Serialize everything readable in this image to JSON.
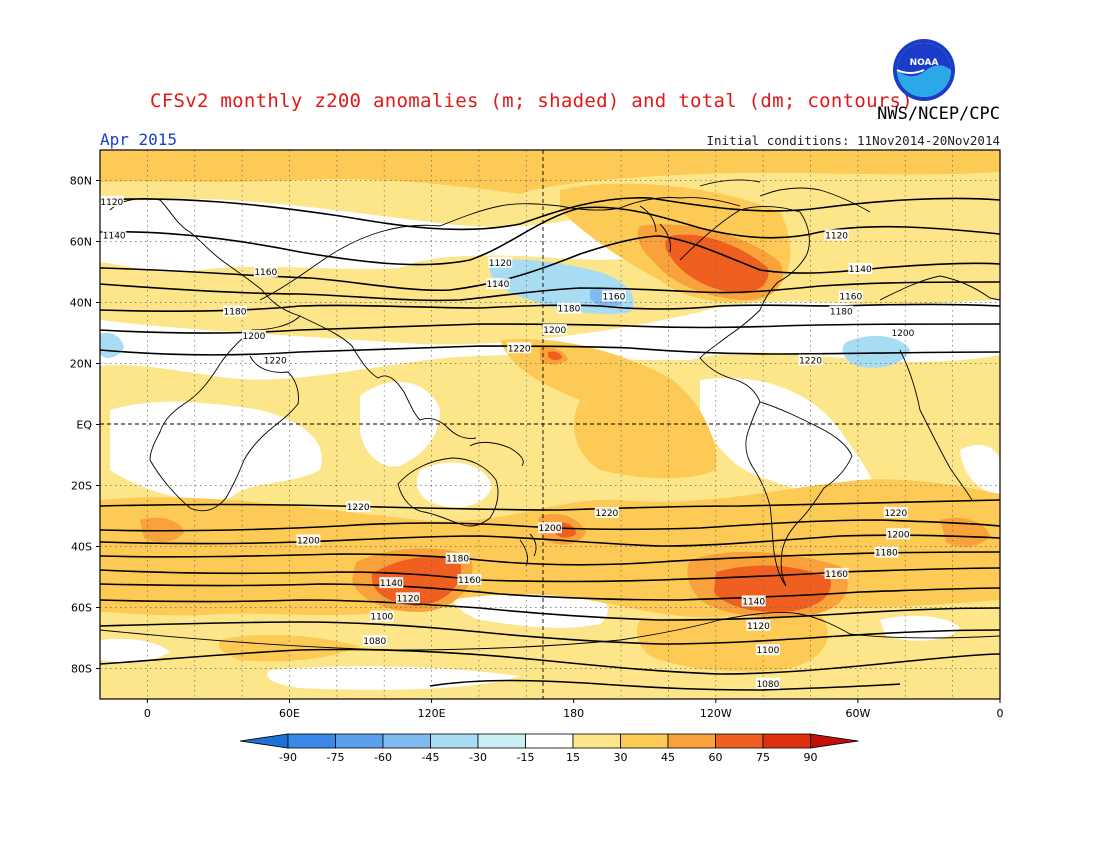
{
  "title": "CFSv2 monthly z200 anomalies (m; shaded) and total (dm; contours)",
  "agency": "NWS/NCEP/CPC",
  "logo_text": "NOAA",
  "month": "Apr 2015",
  "initial_conditions": "Initial conditions: 11Nov2014-20Nov2014",
  "lat_labels": [
    {
      "text": "80N",
      "lat": 80
    },
    {
      "text": "60N",
      "lat": 60
    },
    {
      "text": "40N",
      "lat": 40
    },
    {
      "text": "20N",
      "lat": 20
    },
    {
      "text": "EQ",
      "lat": 0
    },
    {
      "text": "20S",
      "lat": -20
    },
    {
      "text": "40S",
      "lat": -40
    },
    {
      "text": "60S",
      "lat": -60
    },
    {
      "text": "80S",
      "lat": -80
    }
  ],
  "lon_labels": [
    {
      "text": "0",
      "lon": 0
    },
    {
      "text": "60E",
      "lon": 60
    },
    {
      "text": "120E",
      "lon": 120
    },
    {
      "text": "180",
      "lon": 180
    },
    {
      "text": "120W",
      "lon": 240
    },
    {
      "text": "60W",
      "lon": 300
    },
    {
      "text": "0",
      "lon": 360
    }
  ],
  "colorbar": {
    "levels": [
      "-90",
      "-75",
      "-60",
      "-45",
      "-30",
      "-15",
      "15",
      "30",
      "45",
      "60",
      "75",
      "90"
    ],
    "colors": [
      "#1f6fd8",
      "#3a88e8",
      "#5aa0ee",
      "#80baf2",
      "#a8dcf2",
      "#c8f0f4",
      "#ffffff",
      "#fde68a",
      "#fcca55",
      "#f9a23c",
      "#ef6020",
      "#e03010",
      "#c01008"
    ]
  },
  "contour_labels": [
    {
      "text": "1120",
      "lon": -15,
      "lat": 73
    },
    {
      "text": "1140",
      "lon": -14,
      "lat": 62
    },
    {
      "text": "1160",
      "lon": 50,
      "lat": 50
    },
    {
      "text": "1180",
      "lon": 37,
      "lat": 37
    },
    {
      "text": "1200",
      "lon": 45,
      "lat": 29
    },
    {
      "text": "1220",
      "lon": 54,
      "lat": 21
    },
    {
      "text": "1120",
      "lon": 149,
      "lat": 53
    },
    {
      "text": "1140",
      "lon": 148,
      "lat": 46
    },
    {
      "text": "1160",
      "lon": 197,
      "lat": 42
    },
    {
      "text": "1180",
      "lon": 178,
      "lat": 38
    },
    {
      "text": "1200",
      "lon": 172,
      "lat": 31
    },
    {
      "text": "1220",
      "lon": 157,
      "lat": 25
    },
    {
      "text": "1120",
      "lon": 291,
      "lat": 62
    },
    {
      "text": "1140",
      "lon": 301,
      "lat": 51
    },
    {
      "text": "1160",
      "lon": 297,
      "lat": 42
    },
    {
      "text": "1180",
      "lon": 293,
      "lat": 37
    },
    {
      "text": "1200",
      "lon": 319,
      "lat": 30
    },
    {
      "text": "1220",
      "lon": 280,
      "lat": 21
    },
    {
      "text": "1220",
      "lon": 89,
      "lat": -27
    },
    {
      "text": "1200",
      "lon": 68,
      "lat": -38
    },
    {
      "text": "1180",
      "lon": 131,
      "lat": -44
    },
    {
      "text": "1160",
      "lon": 136,
      "lat": -51
    },
    {
      "text": "1140",
      "lon": 103,
      "lat": -52
    },
    {
      "text": "1120",
      "lon": 110,
      "lat": -57
    },
    {
      "text": "1100",
      "lon": 99,
      "lat": -63
    },
    {
      "text": "1080",
      "lon": 96,
      "lat": -71
    },
    {
      "text": "1200",
      "lon": 170,
      "lat": -34
    },
    {
      "text": "1220",
      "lon": 194,
      "lat": -29
    },
    {
      "text": "1220",
      "lon": 316,
      "lat": -29
    },
    {
      "text": "1200",
      "lon": 317,
      "lat": -36
    },
    {
      "text": "1180",
      "lon": 312,
      "lat": -42
    },
    {
      "text": "1160",
      "lon": 291,
      "lat": -49
    },
    {
      "text": "1140",
      "lon": 256,
      "lat": -58
    },
    {
      "text": "1120",
      "lon": 258,
      "lat": -66
    },
    {
      "text": "1100",
      "lon": 262,
      "lat": -74
    },
    {
      "text": "1080",
      "lon": 262,
      "lat": -85
    }
  ]
}
